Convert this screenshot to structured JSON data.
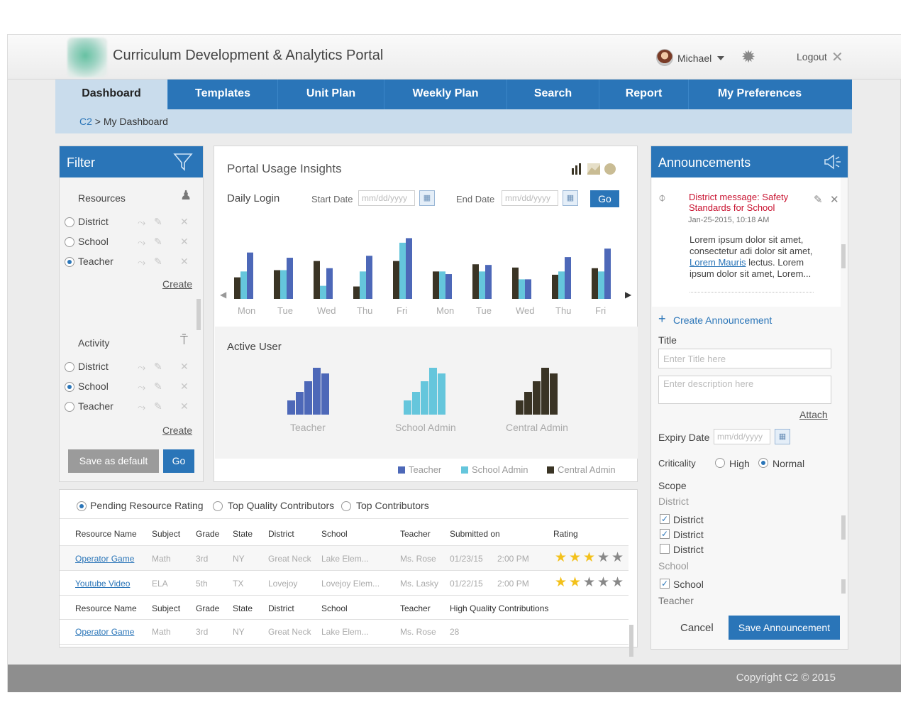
{
  "app": {
    "title": "Curriculum Development & Analytics Portal",
    "user": "Michael",
    "logout": "Logout"
  },
  "nav": {
    "items": [
      "Dashboard",
      "Templates",
      "Unit Plan",
      "Weekly Plan",
      "Search",
      "Report",
      "My Preferences"
    ],
    "active": 0
  },
  "breadcrumb": {
    "root": "C2",
    "sep": ">",
    "current": "My Dashboard"
  },
  "filter": {
    "title": "Filter",
    "resources": {
      "title": "Resources",
      "options": [
        "District",
        "School",
        "Teacher"
      ],
      "selected": 2,
      "create": "Create"
    },
    "activity": {
      "title": "Activity",
      "options": [
        "District",
        "School",
        "Teacher"
      ],
      "selected": 1,
      "create": "Create"
    },
    "save_default": "Save as default",
    "go": "Go"
  },
  "insights": {
    "title": "Portal Usage Insights",
    "daily_login": "Daily Login",
    "start_label": "Start Date",
    "end_label": "End Date",
    "date_placeholder": "mm/dd/yyyy",
    "go": "Go",
    "active_user": "Active User"
  },
  "chart_data": [
    {
      "type": "bar",
      "title": "Daily Login",
      "categories": [
        "Mon",
        "Tue",
        "Wed",
        "Thu",
        "Fri",
        "Mon",
        "Tue",
        "Wed",
        "Thu",
        "Fri"
      ],
      "series": [
        {
          "name": "Central Admin",
          "values": [
            33,
            44,
            58,
            19,
            58,
            42,
            53,
            48,
            37,
            47
          ]
        },
        {
          "name": "School Admin",
          "values": [
            42,
            44,
            20,
            42,
            86,
            42,
            42,
            30,
            42,
            42
          ]
        },
        {
          "name": "Teacher",
          "values": [
            71,
            63,
            47,
            66,
            93,
            38,
            52,
            30,
            64,
            77
          ]
        }
      ],
      "colors": [
        "#3a3425",
        "#65c6dc",
        "#4d68b8"
      ]
    },
    {
      "type": "bar",
      "title": "Active User",
      "groups": [
        {
          "label": "Teacher",
          "color": "#4d68b8",
          "values": [
            20,
            32,
            47,
            66,
            58
          ]
        },
        {
          "label": "School Admin",
          "color": "#65c6dc",
          "values": [
            20,
            32,
            47,
            66,
            58
          ]
        },
        {
          "label": "Central Admin",
          "color": "#3a3425",
          "values": [
            20,
            32,
            47,
            66,
            58
          ]
        }
      ],
      "legend": [
        "Teacher",
        "School Admin",
        "Central Admin"
      ]
    }
  ],
  "announcements": {
    "title": "Announcements",
    "message_title": "District message: Safety Standards for School",
    "message_date": "Jan-25-2015, 10:18 AM",
    "message_body_1": "Lorem ipsum dolor sit amet,",
    "message_body_2": "consectetur adi dolor sit amet,",
    "message_link": "Lorem  Mauris",
    "message_body_3": " lectus. Lorem",
    "message_body_4": "ipsum dolor sit amet, Lorem...",
    "create": "Create Announcement",
    "title_label": "Title",
    "title_placeholder": "Enter Title here",
    "desc_placeholder": "Enter description here",
    "attach": "Attach",
    "expiry_label": "Expiry Date",
    "expiry_placeholder": "mm/dd/yyyy",
    "criticality_label": "Criticality",
    "criticality_options": [
      "High",
      "Normal"
    ],
    "criticality_selected": 1,
    "scope_label": "Scope",
    "scope_district": "District",
    "scope_school": "School",
    "scope_teacher": "Teacher",
    "district_items": [
      {
        "label": "District",
        "checked": true
      },
      {
        "label": "District",
        "checked": true
      },
      {
        "label": "District",
        "checked": false
      }
    ],
    "school_items": [
      {
        "label": "School",
        "checked": true
      }
    ],
    "cancel": "Cancel",
    "save": "Save Announcement"
  },
  "table": {
    "tabs": [
      "Pending Resource Rating",
      "Top Quality Contributors",
      "Top Contributors"
    ],
    "selected_tab": 0,
    "headers1": [
      "Resource Name",
      "Subject",
      "Grade",
      "State",
      "District",
      "School",
      "Teacher",
      "Submitted on",
      "Rating"
    ],
    "rows1": [
      {
        "name": "Operator Game",
        "subject": "Math",
        "grade": "3rd",
        "state": "NY",
        "district": "Great Neck",
        "school": "Lake Elem...",
        "teacher": "Ms. Rose",
        "date": "01/23/15",
        "time": "2:00 PM",
        "rating": 3
      },
      {
        "name": "Youtube Video",
        "subject": "ELA",
        "grade": "5th",
        "state": "TX",
        "district": "Lovejoy",
        "school": "Lovejoy  Elem...",
        "teacher": "Ms. Lasky",
        "date": "01/22/15",
        "time": "2:00 PM",
        "rating": 2
      }
    ],
    "headers2": [
      "Resource Name",
      "Subject",
      "Grade",
      "State",
      "District",
      "School",
      "Teacher",
      "High Quality Contributions"
    ],
    "rows2": [
      {
        "name": "Operator Game",
        "subject": "Math",
        "grade": "3rd",
        "state": "NY",
        "district": "Great Neck",
        "school": "Lake Elem...",
        "teacher": "Ms. Rose",
        "contrib": "28"
      }
    ]
  },
  "footer": {
    "copyright": "Copyright C2 © 2015"
  }
}
